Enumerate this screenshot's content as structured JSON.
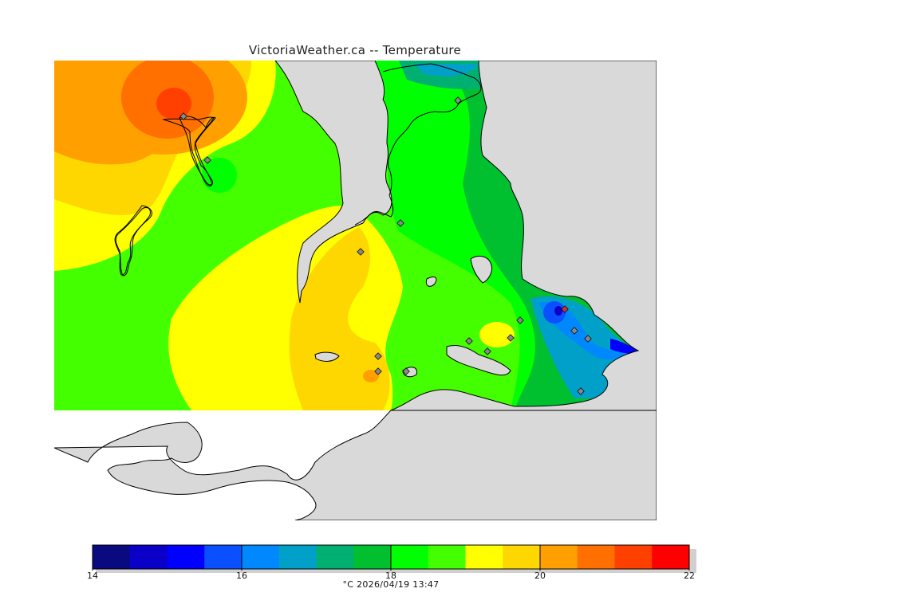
{
  "title": "VictoriaWeather.ca -- Temperature",
  "legend": {
    "ticks": [
      "14",
      "16",
      "18",
      "20",
      "22"
    ],
    "units_timestamp": "°C  2026/04/19 13:47",
    "colors": [
      "#0a0a80",
      "#0a00c8",
      "#0000ff",
      "#0a50ff",
      "#0088ff",
      "#00a0c8",
      "#00b070",
      "#00c030",
      "#00ff00",
      "#44ff00",
      "#ffff00",
      "#ffd700",
      "#ffa000",
      "#ff7000",
      "#ff4000",
      "#ff0000"
    ]
  },
  "colors": {
    "land_outside": "#d9d9d9",
    "water_unmodeled": "#ffffff",
    "coastline": "#000000",
    "station_marker": "#888888"
  }
}
